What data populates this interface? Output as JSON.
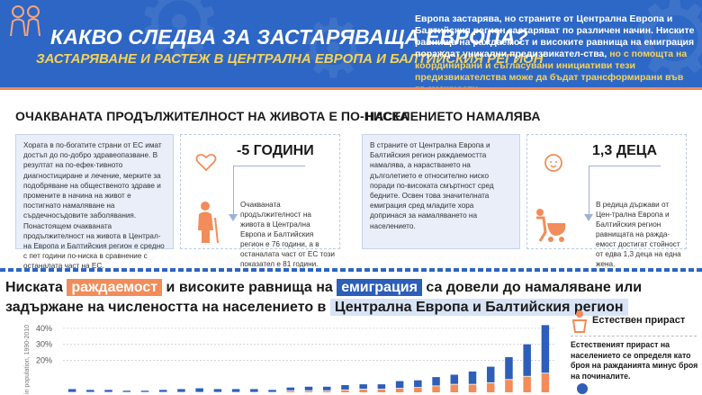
{
  "header": {
    "title": "КАКВО СЛЕДВА ЗА ЗАСТАРЯВАЩА ЕВРОПА?",
    "subtitle": "ЗАСТАРЯВАНЕ И РАСТЕЖ В ЦЕНТРАЛНА ЕВРОПА И БАЛТИЙСКИЯ РЕГИОН",
    "intro_white": "Европа застарява, но страните от Централна Европа и Балтийския регион застаряват по различен начин. Ниските равнища на раждаемост и високите равнища на емиграция пораждат уникални предизвикател-ства,",
    "intro_yellow": "но с помощта на координирани и съгласувани инициативи тези предизвикателства може да бъдат трансформирани във възможности."
  },
  "life": {
    "title": "ОЧАКВАНАТА ПРОДЪЛЖИТЕЛНОСТ НА ЖИВОТА Е ПО-НИСКА",
    "body": "Хората в по-богатите страни от ЕС имат достъп до по-добро здравеопазване. В резултат на по-ефек-тивното диагностициране и лечение, мерките за подобряване на общественото здраве и промените в начина на живот е постигнато намаляване на сърдечносъдовите заболявания. Понастоящем очакваната продължителност на живота в Централ-на Европа и Балтийския регион е средно с пет години по-ниска в сравнение с останалата част на ЕС.",
    "stat": "-5 ГОДИНИ",
    "stat_text": "Очакваната продължителност на живота в Централна Европа и Балтийския регион е 76 години, а в останалата част от ЕС този показател е 81 години."
  },
  "population": {
    "title": "НАСЕЛЕНИЕТО НАМАЛЯВА",
    "body": "В страните от Централна Европа и Балтийския регион раждаемостта намалява, а нарастването на дълголетието е относително ниско поради по-високата смъртност сред бедните. Освен това значителната емиграция сред младите хора допринася за намаляването на населението.",
    "stat": "1,3 ДЕЦА",
    "stat_text": "В редица държави от Цен-трална Европа и Балтийския регион равнищата на ражда-емост достигат стойност от едва 1,3 деца на една жена."
  },
  "bottom": {
    "head_1": "Ниската",
    "tag_1": "раждаемост",
    "head_2": "и високите равнища на",
    "tag_2": "емиграция",
    "head_3": "са довели до намаляване или задържане на числеността на населението в",
    "tag_3": "Централна Европа и Балтийския регион"
  },
  "chart_data": {
    "type": "bar",
    "ylabel": "in population, 1990-2010",
    "yticks": [
      "40%",
      "30%",
      "20%"
    ],
    "ylim": [
      0,
      45
    ],
    "series": [
      {
        "name": "Естествен прираст",
        "color": "#f28c5a"
      },
      {
        "color": "#2d5eb8"
      }
    ],
    "bars": [
      {
        "natural": 0,
        "other": 2
      },
      {
        "natural": 0,
        "other": 1.5
      },
      {
        "natural": 0,
        "other": 1.5
      },
      {
        "natural": 0,
        "other": 1
      },
      {
        "natural": 0,
        "other": 1
      },
      {
        "natural": 0,
        "other": 1.5
      },
      {
        "natural": 0,
        "other": 2
      },
      {
        "natural": 0,
        "other": 2.5
      },
      {
        "natural": 0,
        "other": 2
      },
      {
        "natural": 0,
        "other": 2
      },
      {
        "natural": 0,
        "other": 2
      },
      {
        "natural": 0,
        "other": 1.5
      },
      {
        "natural": 1,
        "other": 2
      },
      {
        "natural": 1,
        "other": 2.5
      },
      {
        "natural": 1,
        "other": 2.5
      },
      {
        "natural": 1.5,
        "other": 3
      },
      {
        "natural": 2,
        "other": 3
      },
      {
        "natural": 2,
        "other": 3
      },
      {
        "natural": 2.5,
        "other": 4.5
      },
      {
        "natural": 3,
        "other": 4.5
      },
      {
        "natural": 4,
        "other": 5.5
      },
      {
        "natural": 5,
        "other": 6
      },
      {
        "natural": 5,
        "other": 8
      },
      {
        "natural": 6,
        "other": 10
      },
      {
        "natural": 8,
        "other": 14
      },
      {
        "natural": 10,
        "other": 20
      },
      {
        "natural": 12,
        "other": 30
      }
    ]
  },
  "legend": {
    "title": "Естествен прираст",
    "text": "Естественият прираст на населението се определя като броя на ражданията минус броя на починалите."
  },
  "colors": {
    "primary_blue": "#2d66c4",
    "accent_yellow": "#f4d35a",
    "accent_orange": "#f28c5a"
  }
}
